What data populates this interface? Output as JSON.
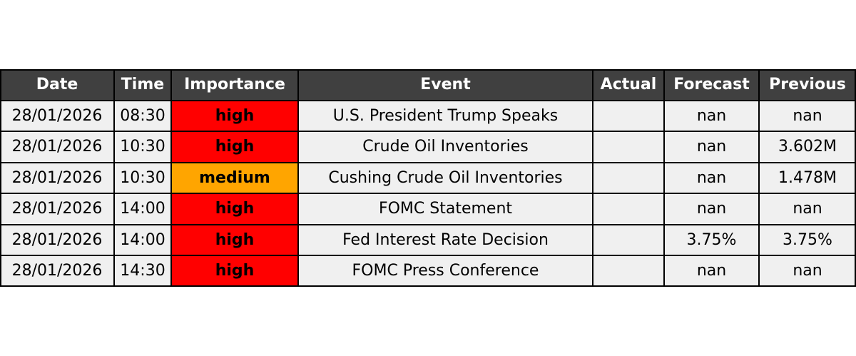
{
  "table": {
    "columns": [
      "Date",
      "Time",
      "Importance",
      "Event",
      "Actual",
      "Forecast",
      "Previous"
    ],
    "rows": [
      [
        "28/01/2026",
        "08:30",
        "high",
        "U.S. President Trump Speaks",
        null,
        "nan",
        "nan"
      ],
      [
        "28/01/2026",
        "10:30",
        "high",
        "Crude Oil Inventories",
        null,
        "nan",
        "3.602M"
      ],
      [
        "28/01/2026",
        "10:30",
        "medium",
        "Cushing Crude Oil Inventories",
        null,
        "nan",
        "1.478M"
      ],
      [
        "28/01/2026",
        "14:00",
        "high",
        "FOMC Statement",
        null,
        "nan",
        "nan"
      ],
      [
        "28/01/2026",
        "14:00",
        "high",
        "Fed Interest Rate Decision",
        null,
        "3.75%",
        "3.75%"
      ],
      [
        "28/01/2026",
        "14:30",
        "high",
        "FOMC Press Conference",
        null,
        "nan",
        "nan"
      ]
    ],
    "header_color": "#404040",
    "cell_color": "#f0f0f0",
    "importance_colors": {
      "high": "#ff0000",
      "medium": "#ffa500"
    }
  }
}
